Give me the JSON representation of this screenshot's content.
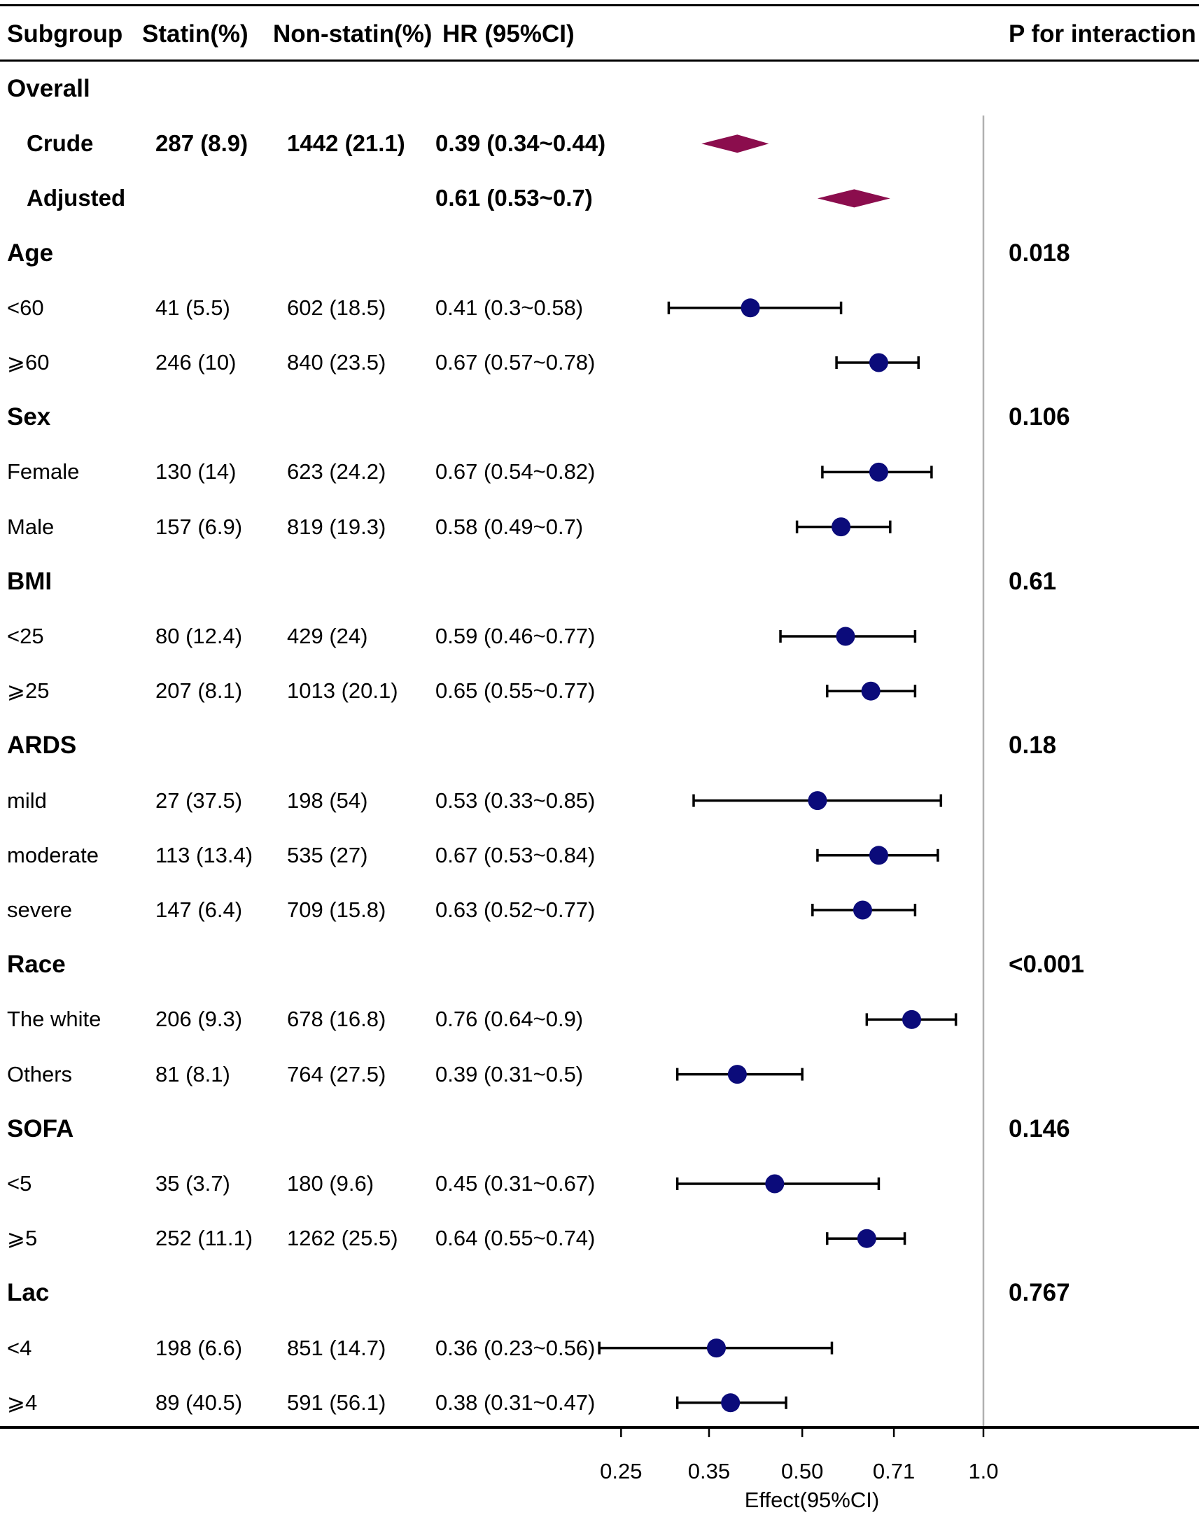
{
  "headers": {
    "subgroup": "Subgroup",
    "statin": "Statin(%)",
    "nonstatin": "Non-statin(%)",
    "hr": "HR (95%CI)",
    "p": "P for interaction"
  },
  "rows": [
    {
      "type": "group",
      "label": "Overall"
    },
    {
      "type": "overall",
      "label": "Crude",
      "statin": "287 (8.9)",
      "nonstatin": "1442 (21.1)",
      "hr_text": "0.39 (0.34~0.44)"
    },
    {
      "type": "overall",
      "label": "Adjusted",
      "hr_text": "0.61 (0.53~0.7)"
    },
    {
      "type": "group",
      "label": "Age",
      "p": "0.018"
    },
    {
      "type": "sub",
      "label": "<60",
      "statin": "41 (5.5)",
      "nonstatin": "602 (18.5)",
      "hr_text": "0.41 (0.3~0.58)"
    },
    {
      "type": "sub",
      "label": "⩾60",
      "statin": "246 (10)",
      "nonstatin": "840 (23.5)",
      "hr_text": "0.67 (0.57~0.78)"
    },
    {
      "type": "group",
      "label": "Sex",
      "p": "0.106"
    },
    {
      "type": "sub",
      "label": "Female",
      "statin": "130 (14)",
      "nonstatin": "623 (24.2)",
      "hr_text": "0.67 (0.54~0.82)"
    },
    {
      "type": "sub",
      "label": "Male",
      "statin": "157 (6.9)",
      "nonstatin": "819 (19.3)",
      "hr_text": "0.58 (0.49~0.7)"
    },
    {
      "type": "group",
      "label": "BMI",
      "p": "0.61"
    },
    {
      "type": "sub",
      "label": "<25",
      "statin": "80 (12.4)",
      "nonstatin": "429 (24)",
      "hr_text": "0.59 (0.46~0.77)"
    },
    {
      "type": "sub",
      "label": "⩾25",
      "statin": "207 (8.1)",
      "nonstatin": "1013 (20.1)",
      "hr_text": "0.65 (0.55~0.77)"
    },
    {
      "type": "group",
      "label": "ARDS",
      "p": "0.18"
    },
    {
      "type": "sub",
      "label": "mild",
      "statin": "27 (37.5)",
      "nonstatin": "198 (54)",
      "hr_text": "0.53 (0.33~0.85)"
    },
    {
      "type": "sub",
      "label": "moderate",
      "statin": "113 (13.4)",
      "nonstatin": "535 (27)",
      "hr_text": "0.67 (0.53~0.84)"
    },
    {
      "type": "sub",
      "label": "severe",
      "statin": "147 (6.4)",
      "nonstatin": "709 (15.8)",
      "hr_text": "0.63 (0.52~0.77)"
    },
    {
      "type": "group",
      "label": "Race",
      "p": "<0.001"
    },
    {
      "type": "sub",
      "label": "The white",
      "statin": "206 (9.3)",
      "nonstatin": "678 (16.8)",
      "hr_text": "0.76 (0.64~0.9)"
    },
    {
      "type": "sub",
      "label": "Others",
      "statin": "81 (8.1)",
      "nonstatin": "764 (27.5)",
      "hr_text": "0.39 (0.31~0.5)"
    },
    {
      "type": "group",
      "label": "SOFA",
      "p": "0.146"
    },
    {
      "type": "sub",
      "label": "<5",
      "statin": "35 (3.7)",
      "nonstatin": "180 (9.6)",
      "hr_text": "0.45 (0.31~0.67)"
    },
    {
      "type": "sub",
      "label": "⩾5",
      "statin": "252 (11.1)",
      "nonstatin": "1262 (25.5)",
      "hr_text": "0.64 (0.55~0.74)"
    },
    {
      "type": "group",
      "label": "Lac",
      "p": "0.767"
    },
    {
      "type": "sub",
      "label": "<4",
      "statin": "198 (6.6)",
      "nonstatin": "851 (14.7)",
      "hr_text": "0.36 (0.23~0.56)"
    },
    {
      "type": "sub",
      "label": "⩾4",
      "statin": "89 (40.5)",
      "nonstatin": "591 (56.1)",
      "hr_text": "0.38 (0.31~0.47)"
    }
  ],
  "chart_data": {
    "type": "forest",
    "title": "",
    "xlabel": "Effect(95%CI)",
    "xscale": "log",
    "xlim": [
      0.2,
      1.0
    ],
    "reference_line": 1.0,
    "ticks": [
      0.25,
      0.35,
      0.5,
      0.71,
      1.0
    ],
    "tick_labels": [
      "0.25",
      "0.35",
      "0.50",
      "0.71",
      "1.0"
    ],
    "series": [
      {
        "name": "Crude",
        "hr": 0.39,
        "lo": 0.34,
        "hi": 0.44,
        "marker": "diamond"
      },
      {
        "name": "Adjusted",
        "hr": 0.61,
        "lo": 0.53,
        "hi": 0.7,
        "marker": "diamond"
      },
      {
        "name": "<60",
        "hr": 0.41,
        "lo": 0.3,
        "hi": 0.58
      },
      {
        "name": "⩾60",
        "hr": 0.67,
        "lo": 0.57,
        "hi": 0.78
      },
      {
        "name": "Female",
        "hr": 0.67,
        "lo": 0.54,
        "hi": 0.82
      },
      {
        "name": "Male",
        "hr": 0.58,
        "lo": 0.49,
        "hi": 0.7
      },
      {
        "name": "<25",
        "hr": 0.59,
        "lo": 0.46,
        "hi": 0.77
      },
      {
        "name": "⩾25",
        "hr": 0.65,
        "lo": 0.55,
        "hi": 0.77
      },
      {
        "name": "mild",
        "hr": 0.53,
        "lo": 0.33,
        "hi": 0.85
      },
      {
        "name": "moderate",
        "hr": 0.67,
        "lo": 0.53,
        "hi": 0.84
      },
      {
        "name": "severe",
        "hr": 0.63,
        "lo": 0.52,
        "hi": 0.77
      },
      {
        "name": "The white",
        "hr": 0.76,
        "lo": 0.64,
        "hi": 0.9
      },
      {
        "name": "Others",
        "hr": 0.39,
        "lo": 0.31,
        "hi": 0.5
      },
      {
        "name": "<5",
        "hr": 0.45,
        "lo": 0.31,
        "hi": 0.67
      },
      {
        "name": "⩾5",
        "hr": 0.64,
        "lo": 0.55,
        "hi": 0.74
      },
      {
        "name": "<4",
        "hr": 0.36,
        "lo": 0.23,
        "hi": 0.56
      },
      {
        "name": "⩾4",
        "hr": 0.38,
        "lo": 0.31,
        "hi": 0.47
      }
    ],
    "colors": {
      "diamond": "#8b0d4d",
      "point": "#0b0b7a",
      "reference": "#b0b0b0"
    }
  }
}
